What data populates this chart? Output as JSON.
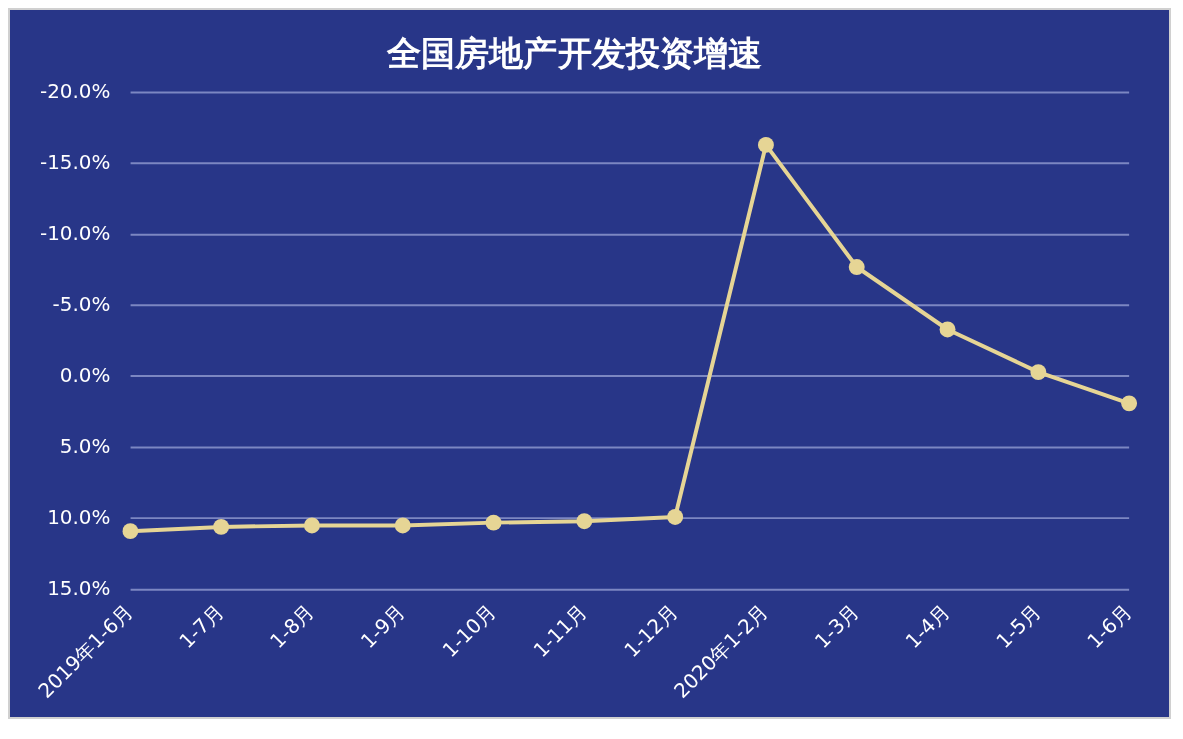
{
  "chart_data": {
    "type": "line",
    "title": "全国房地产开发投资增速",
    "categories": [
      "2019年1-6月",
      "1-7月",
      "1-8月",
      "1-9月",
      "1-10月",
      "1-11月",
      "1-12月",
      "2020年1-2月",
      "1-3月",
      "1-4月",
      "1-5月",
      "1-6月"
    ],
    "series": [
      {
        "color": "#e6d595",
        "values": [
          10.9,
          10.6,
          10.5,
          10.5,
          10.3,
          10.2,
          9.9,
          -16.3,
          -7.7,
          -3.3,
          -0.3,
          1.9
        ]
      }
    ],
    "ylim": [
      15,
      -20
    ],
    "yticks": [
      {
        "value": -20,
        "label": "-20.0%"
      },
      {
        "value": -15,
        "label": "-15.0%"
      },
      {
        "value": -10,
        "label": "-10.0%"
      },
      {
        "value": -5,
        "label": "-5.0%"
      },
      {
        "value": 0,
        "label": "0.0%"
      },
      {
        "value": 5,
        "label": "5.0%"
      },
      {
        "value": 10,
        "label": "10.0%"
      },
      {
        "value": 15,
        "label": "15.0%"
      }
    ],
    "grid": "y",
    "legend": false,
    "marker": "circle",
    "line_style": "solid"
  }
}
